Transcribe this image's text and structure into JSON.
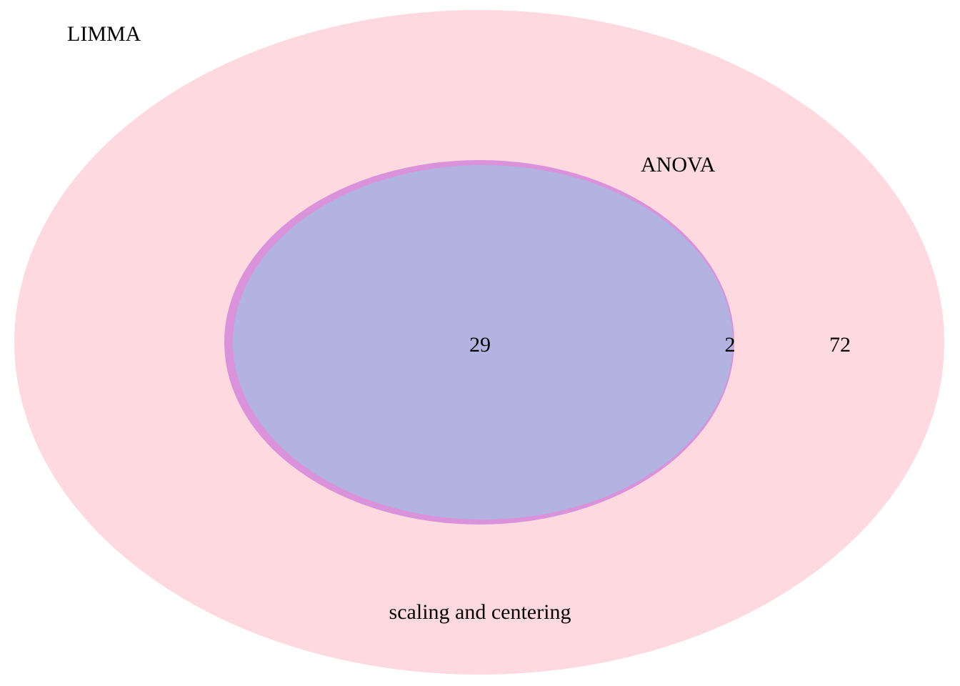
{
  "diagram": {
    "type": "venn",
    "sets": [
      {
        "name": "LIMMA",
        "color": "#ffd9e0"
      },
      {
        "name": "ANOVA",
        "color": "#da92da"
      },
      {
        "name": "scaling and centering",
        "color": "#b2b3e1"
      }
    ],
    "regions": [
      {
        "sets": [
          "LIMMA",
          "ANOVA",
          "scaling and centering"
        ],
        "count": "29"
      },
      {
        "sets": [
          "LIMMA",
          "ANOVA"
        ],
        "count": "2"
      },
      {
        "sets": [
          "LIMMA"
        ],
        "count": "72"
      }
    ]
  }
}
